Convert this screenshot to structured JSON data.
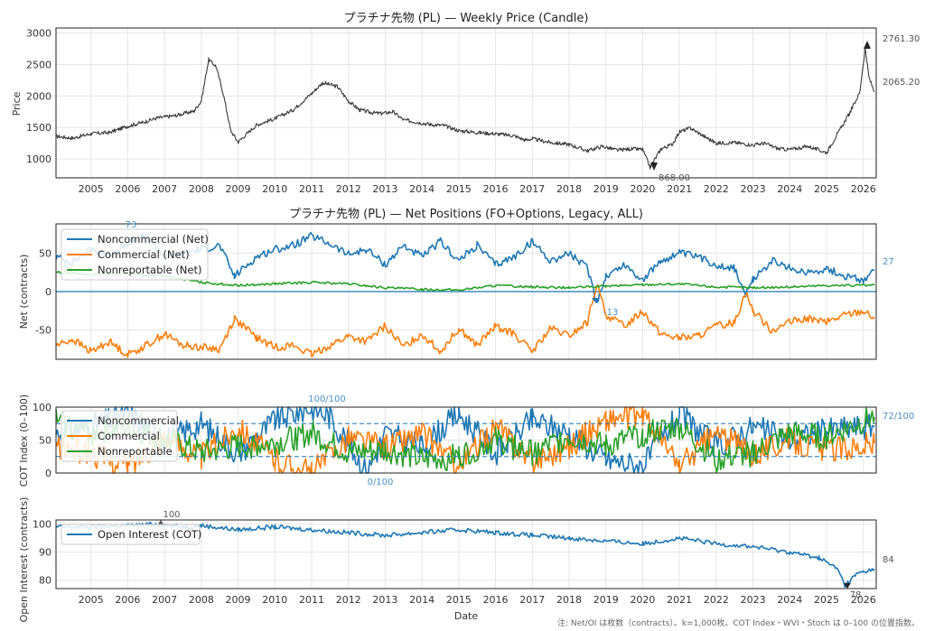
{
  "chart_data": [
    {
      "type": "line",
      "title": "プラチナ先物 (PL) — Weekly Price (Candle)",
      "ylabel": "Price",
      "xlim": [
        2004.05,
        2026.35
      ],
      "ylim": [
        700,
        3080
      ],
      "yticks": [
        "1000",
        "1500",
        "2000",
        "2500",
        "3000"
      ],
      "xticks": [
        "2005",
        "2006",
        "2007",
        "2008",
        "2009",
        "2010",
        "2011",
        "2012",
        "2013",
        "2014",
        "2015",
        "2016",
        "2017",
        "2018",
        "2019",
        "2020",
        "2021",
        "2022",
        "2023",
        "2024",
        "2025",
        "2026"
      ],
      "series": [
        {
          "color": "#3a3a3a",
          "x": [
            2004.05,
            2004.5,
            2005.0,
            2005.5,
            2006.0,
            2006.4,
            2006.8,
            2007.3,
            2007.8,
            2008.0,
            2008.2,
            2008.4,
            2008.6,
            2008.8,
            2009.0,
            2009.5,
            2010.0,
            2010.5,
            2011.0,
            2011.3,
            2011.7,
            2012.0,
            2012.3,
            2012.6,
            2012.9,
            2013.2,
            2013.5,
            2013.8,
            2014.2,
            2014.6,
            2015.0,
            2015.5,
            2016.0,
            2016.5,
            2016.8,
            2017.0,
            2017.5,
            2018.0,
            2018.5,
            2018.9,
            2019.3,
            2019.7,
            2020.0,
            2020.2,
            2020.5,
            2020.8,
            2021.0,
            2021.3,
            2021.7,
            2022.0,
            2022.5,
            2023.0,
            2023.3,
            2023.7,
            2024.0,
            2024.5,
            2025.0,
            2025.3,
            2025.6,
            2025.9,
            2026.05,
            2026.15,
            2026.3
          ],
          "values": [
            1360,
            1330,
            1400,
            1420,
            1520,
            1580,
            1650,
            1690,
            1760,
            1920,
            2580,
            2470,
            2030,
            1450,
            1270,
            1540,
            1640,
            1780,
            2040,
            2210,
            2150,
            1920,
            1780,
            1740,
            1720,
            1750,
            1620,
            1590,
            1550,
            1530,
            1450,
            1420,
            1400,
            1370,
            1300,
            1320,
            1260,
            1230,
            1130,
            1200,
            1140,
            1160,
            1150,
            868,
            1160,
            1230,
            1430,
            1490,
            1350,
            1250,
            1260,
            1220,
            1250,
            1160,
            1150,
            1200,
            1100,
            1400,
            1700,
            2050,
            2761.3,
            2300,
            2065.2
          ]
        }
      ],
      "annotations": [
        "2761.30",
        "2065.20",
        "868.00"
      ]
    },
    {
      "type": "line",
      "title": "プラチナ先物 (PL) — Net Positions (FO+Options, Legacy, ALL)",
      "ylabel": "Net (contracts)",
      "ylim": [
        -88,
        88
      ],
      "yticks": [
        "50",
        "0",
        "-50"
      ],
      "series": [
        {
          "name": "Noncommercial (Net)",
          "color": "#1f77b4",
          "x": [
            2004.05,
            2004.5,
            2005.0,
            2005.5,
            2006.0,
            2006.5,
            2007.0,
            2007.5,
            2008.0,
            2008.5,
            2008.9,
            2009.5,
            2010.0,
            2010.5,
            2011.0,
            2011.5,
            2012.0,
            2012.5,
            2013.0,
            2013.5,
            2014.0,
            2014.5,
            2015.0,
            2015.5,
            2016.0,
            2016.5,
            2017.0,
            2017.5,
            2018.0,
            2018.5,
            2018.75,
            2019.0,
            2019.5,
            2020.0,
            2020.5,
            2021.0,
            2021.5,
            2022.0,
            2022.5,
            2022.8,
            2023.0,
            2023.5,
            2024.0,
            2024.5,
            2025.0,
            2025.5,
            2026.0,
            2026.3
          ],
          "values": [
            45,
            38,
            55,
            48,
            62,
            73,
            45,
            50,
            55,
            60,
            20,
            45,
            55,
            60,
            72,
            62,
            48,
            55,
            35,
            60,
            45,
            65,
            40,
            60,
            35,
            45,
            65,
            40,
            50,
            30,
            -13,
            20,
            35,
            15,
            40,
            50,
            45,
            35,
            30,
            -5,
            15,
            40,
            30,
            25,
            30,
            20,
            15,
            27
          ]
        },
        {
          "name": "Commercial (Net)",
          "color": "#ff7f0e",
          "x": [
            2004.05,
            2004.5,
            2005.0,
            2005.5,
            2006.0,
            2006.5,
            2007.0,
            2007.5,
            2008.0,
            2008.5,
            2008.9,
            2009.5,
            2010.0,
            2010.5,
            2011.0,
            2011.5,
            2012.0,
            2012.5,
            2013.0,
            2013.5,
            2014.0,
            2014.5,
            2015.0,
            2015.5,
            2016.0,
            2016.5,
            2017.0,
            2017.5,
            2018.0,
            2018.5,
            2018.75,
            2019.0,
            2019.5,
            2020.0,
            2020.5,
            2021.0,
            2021.5,
            2022.0,
            2022.5,
            2022.8,
            2023.0,
            2023.5,
            2024.0,
            2024.5,
            2025.0,
            2025.5,
            2026.0,
            2026.3
          ],
          "values": [
            -70,
            -62,
            -78,
            -65,
            -82,
            -70,
            -55,
            -70,
            -72,
            -75,
            -35,
            -60,
            -72,
            -70,
            -82,
            -70,
            -58,
            -65,
            -45,
            -72,
            -55,
            -78,
            -48,
            -70,
            -45,
            -55,
            -78,
            -48,
            -58,
            -40,
            10,
            -30,
            -45,
            -25,
            -55,
            -60,
            -58,
            -45,
            -40,
            0,
            -25,
            -50,
            -40,
            -35,
            -40,
            -30,
            -25,
            -35
          ]
        },
        {
          "name": "Nonreportable (Net)",
          "color": "#2ca02c",
          "x": [
            2004.05,
            2005.0,
            2006.0,
            2007.0,
            2008.0,
            2009.0,
            2010.0,
            2011.0,
            2012.0,
            2013.0,
            2014.0,
            2015.0,
            2016.0,
            2017.0,
            2018.0,
            2019.0,
            2020.0,
            2021.0,
            2022.0,
            2023.0,
            2024.0,
            2025.0,
            2026.3
          ],
          "values": [
            25,
            22,
            23,
            20,
            12,
            8,
            10,
            12,
            10,
            5,
            3,
            2,
            8,
            6,
            5,
            7,
            9,
            10,
            6,
            5,
            6,
            8,
            8
          ]
        }
      ],
      "annotations": [
        "73",
        "27",
        "-13"
      ]
    },
    {
      "type": "line",
      "title": "",
      "ylabel": "COT Index (0–100)",
      "ylim": [
        0,
        100
      ],
      "yticks": [
        "100",
        "50",
        "0"
      ],
      "reference_lines": [
        75,
        25
      ],
      "series": [
        {
          "name": "Noncommercial",
          "color": "#1f77b4",
          "x": [
            2004.05,
            2005.0,
            2006.0,
            2007.0,
            2008.0,
            2009.0,
            2010.0,
            2011.0,
            2011.5,
            2012.0,
            2012.5,
            2013.0,
            2014.0,
            2015.0,
            2016.0,
            2017.0,
            2018.0,
            2019.0,
            2020.0,
            2021.0,
            2022.0,
            2023.0,
            2024.0,
            2025.0,
            2026.3
          ],
          "values": [
            60,
            70,
            90,
            50,
            75,
            30,
            80,
            100,
            85,
            45,
            0,
            60,
            40,
            90,
            30,
            80,
            60,
            20,
            10,
            90,
            40,
            70,
            50,
            65,
            72
          ]
        },
        {
          "name": "Commercial",
          "color": "#ff7f0e",
          "x": [
            2004.05,
            2005.0,
            2006.0,
            2007.0,
            2008.0,
            2009.0,
            2010.0,
            2011.0,
            2012.0,
            2013.0,
            2014.0,
            2015.0,
            2016.0,
            2017.0,
            2018.0,
            2019.0,
            2020.0,
            2021.0,
            2022.0,
            2023.0,
            2024.0,
            2025.0,
            2026.3
          ],
          "values": [
            40,
            30,
            10,
            55,
            25,
            70,
            20,
            0,
            55,
            40,
            60,
            10,
            70,
            20,
            40,
            80,
            90,
            10,
            60,
            30,
            50,
            35,
            45
          ]
        },
        {
          "name": "Nonreportable",
          "color": "#2ca02c",
          "x": [
            2004.05,
            2005.0,
            2006.0,
            2007.0,
            2008.0,
            2009.0,
            2010.0,
            2011.0,
            2012.0,
            2013.0,
            2014.0,
            2015.0,
            2016.0,
            2017.0,
            2018.0,
            2019.0,
            2020.0,
            2021.0,
            2022.0,
            2023.0,
            2024.0,
            2025.0,
            2026.3
          ],
          "values": [
            80,
            60,
            70,
            50,
            30,
            40,
            45,
            60,
            30,
            35,
            20,
            25,
            50,
            30,
            55,
            40,
            60,
            70,
            20,
            30,
            60,
            55,
            85
          ]
        }
      ],
      "annotations": [
        "100/100",
        "0/100",
        "72/100"
      ]
    },
    {
      "type": "line",
      "title": "",
      "ylabel": "Open Interest (contracts)",
      "xlabel": "Date",
      "ylim": [
        77,
        101.5
      ],
      "yticks": [
        "100",
        "90",
        "80"
      ],
      "series": [
        {
          "name": "Open Interest (COT)",
          "color": "#1f77b4",
          "x": [
            2004.05,
            2005.0,
            2006.0,
            2006.8,
            2007.5,
            2008.0,
            2009.0,
            2010.0,
            2011.0,
            2012.0,
            2013.0,
            2014.0,
            2015.0,
            2016.0,
            2017.0,
            2018.0,
            2019.0,
            2020.0,
            2021.0,
            2022.0,
            2023.0,
            2024.0,
            2024.8,
            2025.3,
            2025.5,
            2025.8,
            2026.0,
            2026.3
          ],
          "values": [
            99,
            99,
            99.5,
            100,
            99,
            99.5,
            98,
            99,
            98,
            97,
            96,
            97,
            98,
            97,
            96,
            95,
            94,
            93,
            95,
            93,
            92,
            90,
            88,
            84,
            78,
            82,
            83,
            84
          ]
        }
      ],
      "annotations": [
        "100",
        "78",
        "84"
      ]
    }
  ],
  "note": "注: Net/OI は枚数（contracts）。k=1,000枚。COT Index・WVI・Stoch は 0–100 の位置指数。"
}
